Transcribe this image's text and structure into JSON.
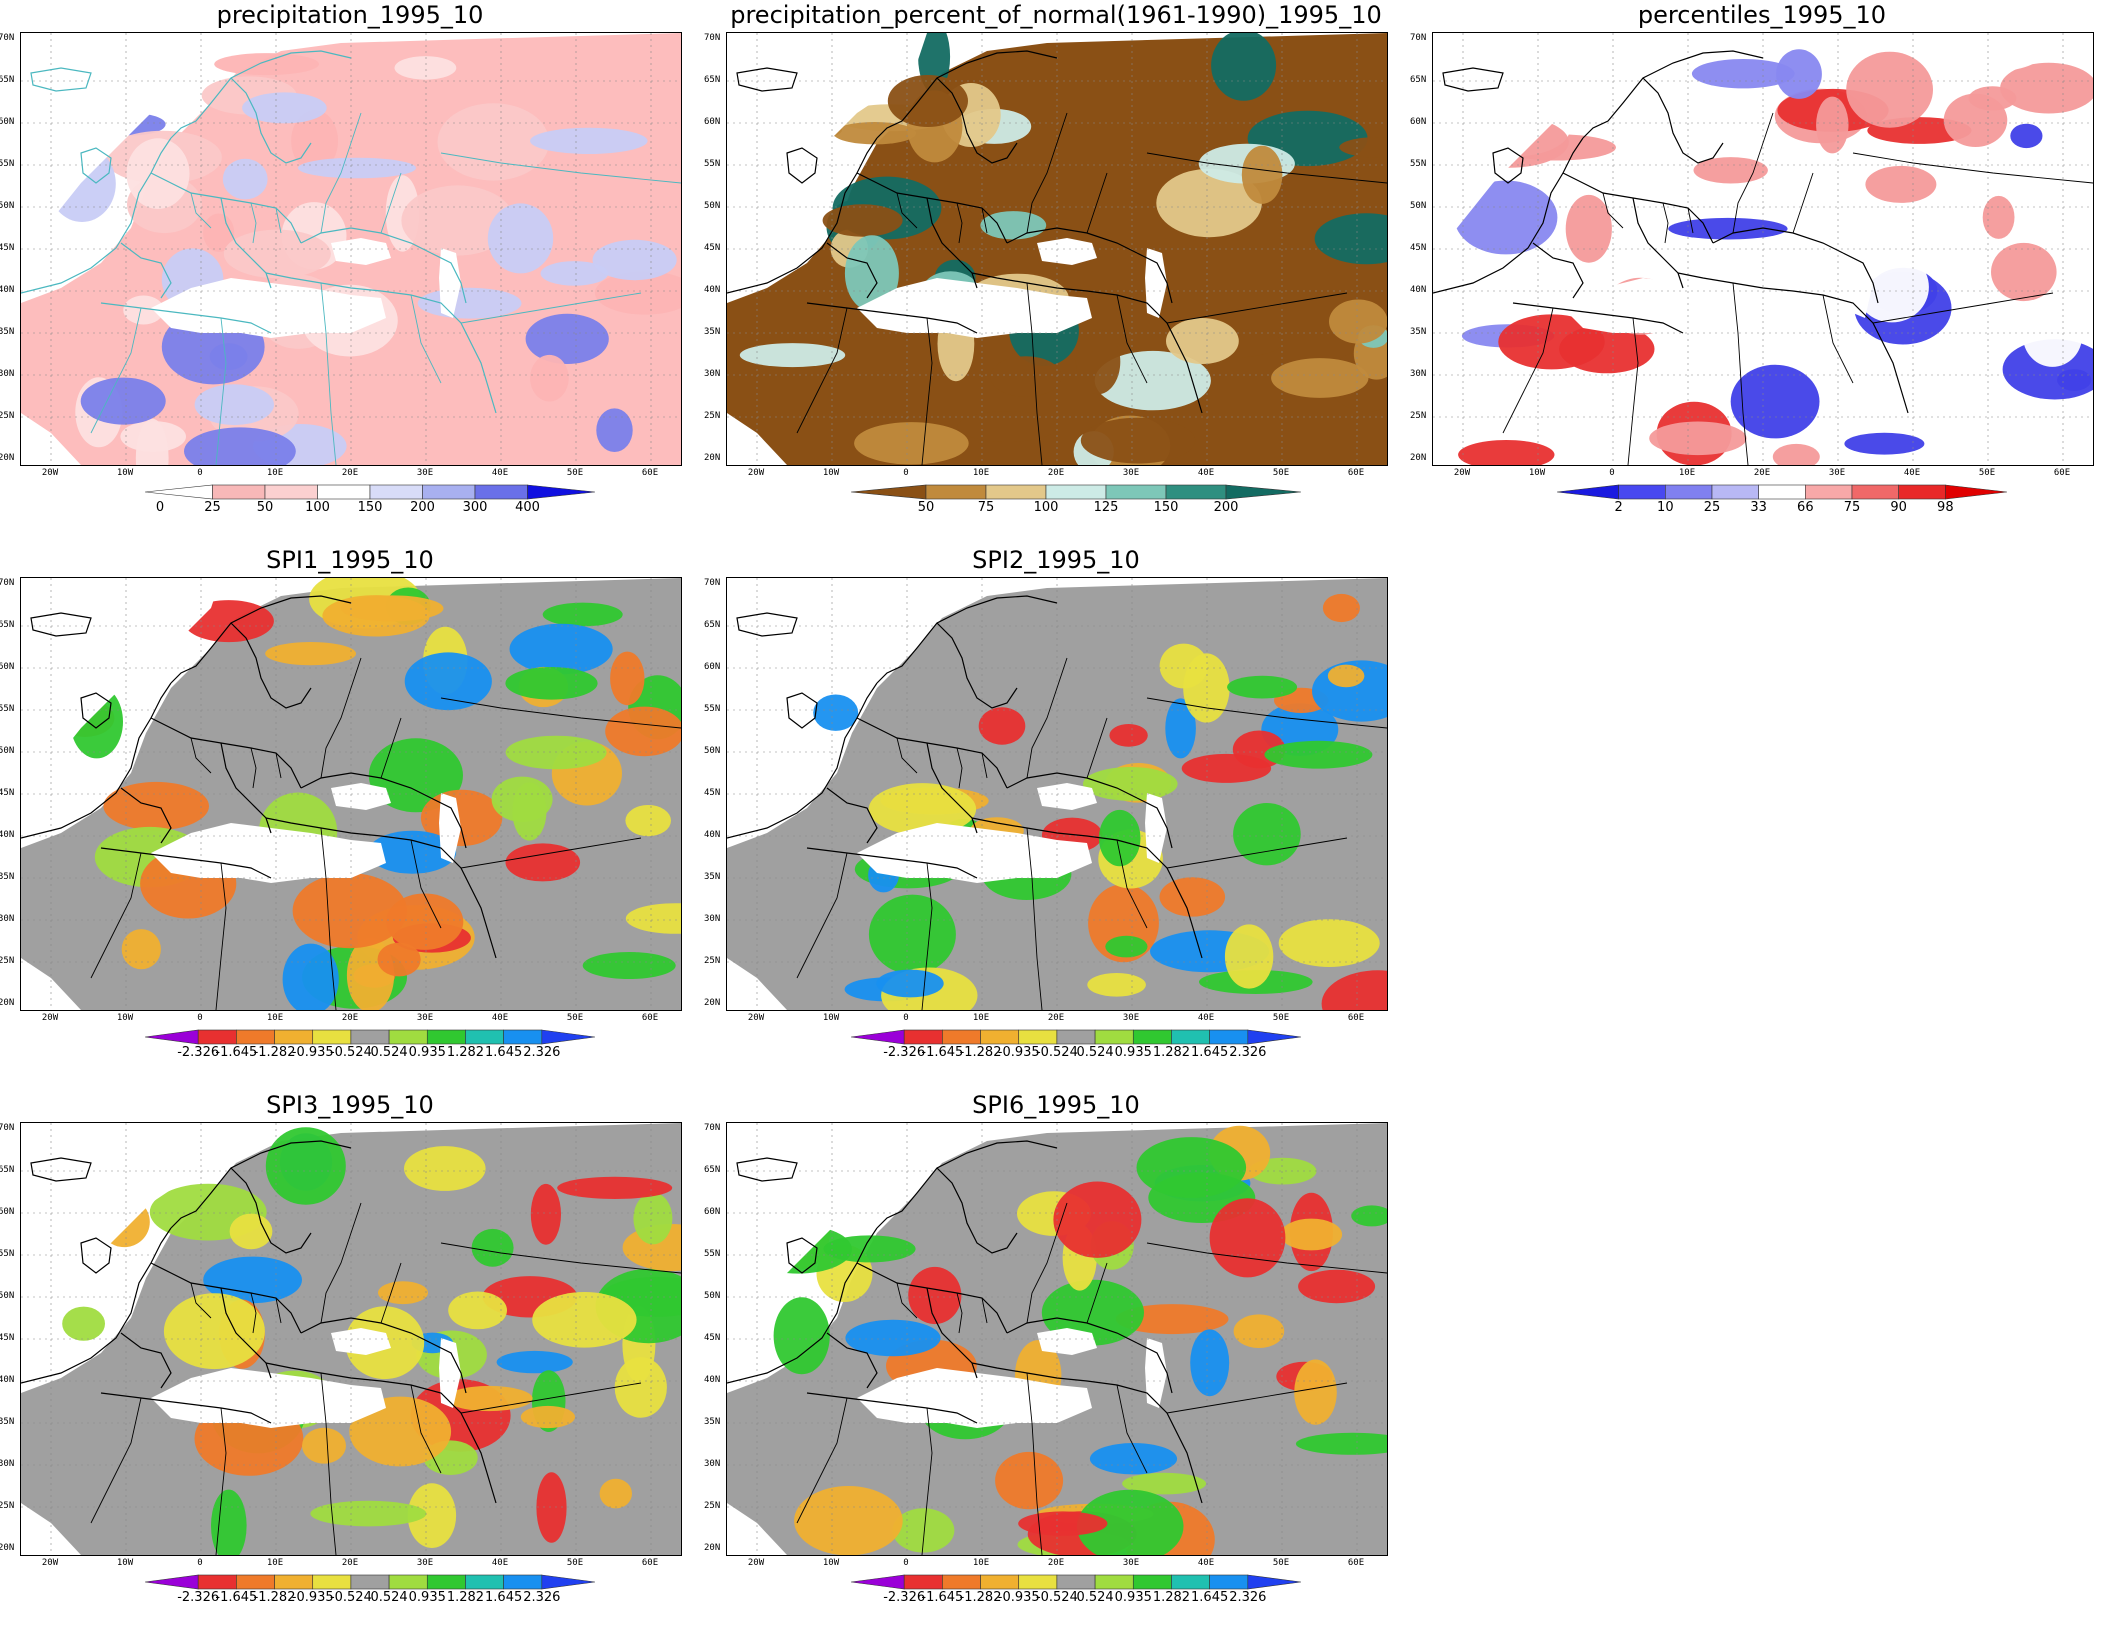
{
  "panels": [
    {
      "title": "precipitation_1995_10",
      "colorbar": {
        "labels": [
          "0",
          "25",
          "50",
          "100",
          "150",
          "200",
          "300",
          "400"
        ],
        "colors": [
          "#ffffff",
          "#f8b8b8",
          "#fbd0d0",
          "#ffffff",
          "#d8dcf8",
          "#a8b0f0",
          "#6a70e8",
          "#1010e0"
        ]
      },
      "palette": [
        "#fdb4b4",
        "#fbc8c8",
        "#fde0e0",
        "#c8ccf5",
        "#7a80ea"
      ],
      "base": "#fdbdbd",
      "coast": "#4bb8c0"
    },
    {
      "title": "precipitation_percent_of_normal(1961-1990)_1995_10",
      "colorbar": {
        "labels": [
          "50",
          "75",
          "100",
          "125",
          "150",
          "200"
        ],
        "colors": [
          "#8a5015",
          "#c08a3c",
          "#e3c88a",
          "#cdebe6",
          "#7dc7b8",
          "#2f8f80",
          "#136b62"
        ]
      },
      "palette": [
        "#8a5015",
        "#c08a3c",
        "#e3c88a",
        "#cdebe6",
        "#7dc7b8",
        "#136b62"
      ],
      "base": "#8a5015",
      "coast": "#000000"
    },
    {
      "title": "percentiles_1995_10",
      "colorbar": {
        "labels": [
          "2",
          "10",
          "25",
          "33",
          "66",
          "75",
          "90",
          "98"
        ],
        "colors": [
          "#1a1ae0",
          "#4848f0",
          "#8080f0",
          "#b8b8f5",
          "#ffffff",
          "#f8a8a8",
          "#f06868",
          "#e82828",
          "#e00000"
        ]
      },
      "palette": [
        "#4040e8",
        "#8888f0",
        "#ffffff",
        "#f49a9a",
        "#e83030"
      ],
      "base": "#ffffff",
      "coast": "#000000"
    },
    {
      "title": "SPI1_1995_10",
      "colorbar": {
        "labels": [
          "-2.326",
          "-1.645",
          "-1.282",
          "-0.935",
          "-0.524",
          "0.524",
          "0.935",
          "1.282",
          "1.645",
          "2.326"
        ],
        "colors": [
          "#9a00d8",
          "#e83030",
          "#ef7a2a",
          "#f0b030",
          "#e8e040",
          "#a0a0a0",
          "#a0dc40",
          "#30c830",
          "#20c0b0",
          "#1890f0",
          "#2040f0"
        ]
      },
      "palette": [
        "#e83030",
        "#ef7a2a",
        "#f0b030",
        "#e8e040",
        "#a0dc40",
        "#30c830",
        "#1890f0"
      ],
      "base": "#a0a0a0",
      "coast": "#000000"
    },
    {
      "title": "SPI2_1995_10",
      "colorbar": {
        "labels": [
          "-2.326",
          "-1.645",
          "-1.282",
          "-0.935",
          "-0.524",
          "0.524",
          "0.935",
          "1.282",
          "1.645",
          "2.326"
        ],
        "colors": [
          "#9a00d8",
          "#e83030",
          "#ef7a2a",
          "#f0b030",
          "#e8e040",
          "#a0a0a0",
          "#a0dc40",
          "#30c830",
          "#20c0b0",
          "#1890f0",
          "#2040f0"
        ]
      },
      "palette": [
        "#e83030",
        "#ef7a2a",
        "#f0b030",
        "#e8e040",
        "#a0dc40",
        "#30c830",
        "#1890f0"
      ],
      "base": "#a0a0a0",
      "coast": "#000000"
    },
    {
      "title": "SPI3_1995_10",
      "colorbar": {
        "labels": [
          "-2.326",
          "-1.645",
          "-1.282",
          "-0.935",
          "-0.524",
          "0.524",
          "0.935",
          "1.282",
          "1.645",
          "2.326"
        ],
        "colors": [
          "#9a00d8",
          "#e83030",
          "#ef7a2a",
          "#f0b030",
          "#e8e040",
          "#a0a0a0",
          "#a0dc40",
          "#30c830",
          "#20c0b0",
          "#1890f0",
          "#2040f0"
        ]
      },
      "palette": [
        "#e83030",
        "#ef7a2a",
        "#f0b030",
        "#e8e040",
        "#a0dc40",
        "#30c830",
        "#1890f0"
      ],
      "base": "#a0a0a0",
      "coast": "#000000"
    },
    {
      "title": "SPI6_1995_10",
      "colorbar": {
        "labels": [
          "-2.326",
          "-1.645",
          "-1.282",
          "-0.935",
          "-0.524",
          "0.524",
          "0.935",
          "1.282",
          "1.645",
          "2.326"
        ],
        "colors": [
          "#9a00d8",
          "#e83030",
          "#ef7a2a",
          "#f0b030",
          "#e8e040",
          "#a0a0a0",
          "#a0dc40",
          "#30c830",
          "#20c0b0",
          "#1890f0",
          "#2040f0"
        ]
      },
      "palette": [
        "#e83030",
        "#ef7a2a",
        "#f0b030",
        "#e8e040",
        "#a0dc40",
        "#30c830",
        "#1890f0"
      ],
      "base": "#a0a0a0",
      "coast": "#000000"
    }
  ],
  "axes": {
    "lat_labels": [
      "70N",
      "65N",
      "60N",
      "55N",
      "50N",
      "45N",
      "40N",
      "35N",
      "30N",
      "25N",
      "20N"
    ],
    "lon_labels": [
      "20W",
      "10W",
      "0",
      "10E",
      "20E",
      "30E",
      "40E",
      "50E",
      "60E"
    ]
  }
}
